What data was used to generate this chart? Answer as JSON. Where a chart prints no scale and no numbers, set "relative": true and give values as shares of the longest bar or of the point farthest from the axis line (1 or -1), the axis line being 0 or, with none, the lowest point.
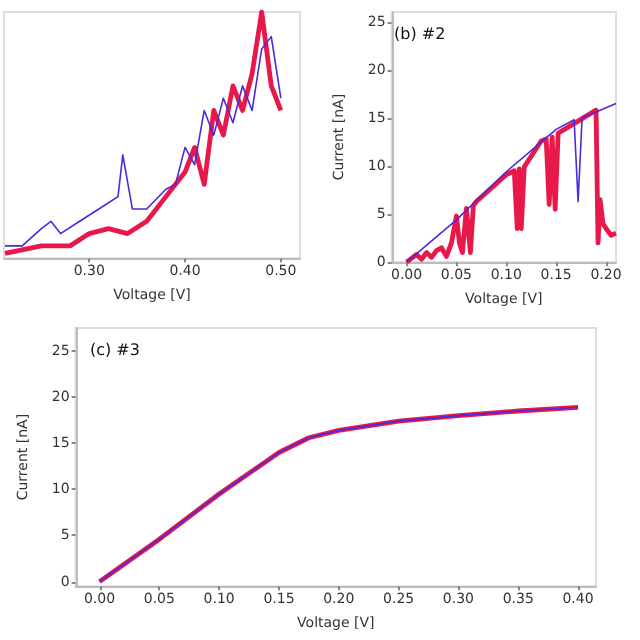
{
  "chart_data": [
    {
      "type": "line",
      "relative": true,
      "xlabel": "Voltage [V]",
      "xlim": [
        0.211,
        0.52
      ],
      "xticks": [
        {
          "value": 0.3,
          "label": "0.30"
        },
        {
          "value": 0.4,
          "label": "0.40"
        },
        {
          "value": 0.5,
          "label": "0.50"
        }
      ],
      "series": [
        {
          "color": "#e8194a",
          "x": [
            0.212,
            0.25,
            0.28,
            0.3,
            0.32,
            0.34,
            0.36,
            0.38,
            0.4,
            0.41,
            0.42,
            0.43,
            0.44,
            0.45,
            0.46,
            0.47,
            0.48,
            0.49,
            0.5
          ],
          "values": [
            0.02,
            0.05,
            0.05,
            0.1,
            0.12,
            0.1,
            0.15,
            0.25,
            0.35,
            0.45,
            0.3,
            0.6,
            0.5,
            0.7,
            0.6,
            0.75,
            1,
            0.7,
            0.6
          ]
        },
        {
          "color": "#4a2adb",
          "x": [
            0.212,
            0.23,
            0.25,
            0.26,
            0.27,
            0.29,
            0.31,
            0.33,
            0.335,
            0.345,
            0.36,
            0.38,
            0.39,
            0.4,
            0.41,
            0.42,
            0.43,
            0.44,
            0.45,
            0.46,
            0.47,
            0.48,
            0.49,
            0.5
          ],
          "values": [
            0.05,
            0.05,
            0.12,
            0.15,
            0.1,
            0.15,
            0.2,
            0.25,
            0.42,
            0.2,
            0.2,
            0.28,
            0.3,
            0.45,
            0.38,
            0.6,
            0.5,
            0.65,
            0.55,
            0.7,
            0.6,
            0.85,
            0.9,
            0.65
          ]
        }
      ]
    },
    {
      "type": "line",
      "title": "(b) #2",
      "xlabel": "Voltage [V]",
      "ylabel": "Current [nA]",
      "xlim": [
        -0.015,
        0.21
      ],
      "xticks": [
        {
          "value": 0,
          "label": "0.00"
        },
        {
          "value": 0.05,
          "label": "0.05"
        },
        {
          "value": 0.1,
          "label": "0.10"
        },
        {
          "value": 0.15,
          "label": "0.15"
        },
        {
          "value": 0.2,
          "label": "0.20"
        }
      ],
      "ylim": [
        0,
        26
      ],
      "yticks": [
        0,
        5,
        10,
        15,
        20,
        25
      ],
      "series": [
        {
          "color": "#e8194a",
          "x": [
            0,
            0.01,
            0.015,
            0.02,
            0.025,
            0.03,
            0.035,
            0.04,
            0.045,
            0.05,
            0.053,
            0.056,
            0.06,
            0.064,
            0.067,
            0.07,
            0.1,
            0.108,
            0.111,
            0.113,
            0.115,
            0.118,
            0.135,
            0.14,
            0.143,
            0.146,
            0.149,
            0.152,
            0.155,
            0.19,
            0.192,
            0.194,
            0.197,
            0.2,
            0.205,
            0.21
          ],
          "values": [
            0,
            0.8,
            0.3,
            1,
            0.5,
            1.2,
            1.5,
            0.6,
            2,
            4.8,
            2,
            1,
            5.6,
            1,
            5.9,
            6.3,
            9.1,
            9.5,
            3.5,
            9.7,
            3.5,
            9.9,
            12.6,
            12.8,
            6,
            13,
            5.5,
            13.4,
            13.6,
            15.8,
            2,
            6.5,
            4,
            3.5,
            2.8,
            3
          ]
        },
        {
          "color": "#4a2adb",
          "x": [
            0,
            0.05,
            0.1,
            0.15,
            0.168,
            0.172,
            0.176,
            0.19,
            0.21
          ],
          "values": [
            0,
            4.4,
            9.4,
            13.8,
            14.8,
            6.3,
            15,
            15.6,
            16.5
          ]
        }
      ]
    },
    {
      "type": "line",
      "title": "(c) #3",
      "xlabel": "Voltage [V]",
      "ylabel": "Current [nA]",
      "xlim": [
        -0.02,
        0.415
      ],
      "xticks": [
        {
          "value": 0,
          "label": "0.00"
        },
        {
          "value": 0.05,
          "label": "0.05"
        },
        {
          "value": 0.1,
          "label": "0.10"
        },
        {
          "value": 0.15,
          "label": "0.15"
        },
        {
          "value": 0.2,
          "label": "0.20"
        },
        {
          "value": 0.25,
          "label": "0.25"
        },
        {
          "value": 0.3,
          "label": "0.30"
        },
        {
          "value": 0.35,
          "label": "0.35"
        },
        {
          "value": 0.4,
          "label": "0.40"
        }
      ],
      "ylim": [
        -0.5,
        27.5
      ],
      "yticks": [
        0,
        5,
        10,
        15,
        20,
        25
      ],
      "series": [
        {
          "color": "#e8194a",
          "x": [
            0,
            0.05,
            0.1,
            0.15,
            0.175,
            0.2,
            0.25,
            0.3,
            0.35,
            0.4
          ],
          "values": [
            0,
            4.6,
            9.5,
            14,
            15.6,
            16.4,
            17.4,
            18,
            18.5,
            18.9
          ]
        },
        {
          "color": "#4a2adb",
          "x": [
            0,
            0.05,
            0.1,
            0.15,
            0.175,
            0.2,
            0.25,
            0.3,
            0.35,
            0.4
          ],
          "values": [
            0,
            4.6,
            9.5,
            14,
            15.6,
            16.4,
            17.4,
            18,
            18.5,
            18.9
          ]
        }
      ]
    }
  ]
}
